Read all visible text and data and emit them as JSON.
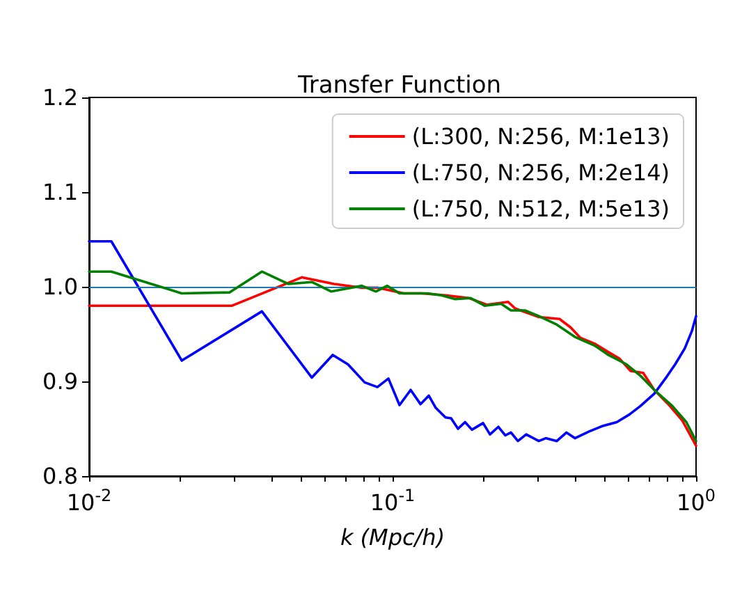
{
  "chart_data": {
    "type": "line",
    "title": "Transfer Function",
    "xlabel": "k (Mpc/h)",
    "log": "x",
    "xlim": [
      0.01,
      1
    ],
    "xticks": [
      {
        "value": 0.01,
        "label": "10$^{-2}$"
      },
      {
        "value": 0.02,
        "label": null
      },
      {
        "value": 0.03,
        "label": null
      },
      {
        "value": 0.04,
        "label": null
      },
      {
        "value": 0.05,
        "label": null
      },
      {
        "value": 0.06,
        "label": null
      },
      {
        "value": 0.07,
        "label": null
      },
      {
        "value": 0.08,
        "label": null
      },
      {
        "value": 0.09,
        "label": null
      },
      {
        "value": 0.1,
        "label": "10$^{-1}$"
      },
      {
        "value": 0.2,
        "label": null
      },
      {
        "value": 0.3,
        "label": null
      },
      {
        "value": 0.4,
        "label": null
      },
      {
        "value": 0.5,
        "label": null
      },
      {
        "value": 0.6,
        "label": null
      },
      {
        "value": 0.7,
        "label": null
      },
      {
        "value": 0.8,
        "label": null
      },
      {
        "value": 0.9,
        "label": null
      },
      {
        "value": 1,
        "label": "10$^{0}$"
      }
    ],
    "ylim": [
      0.8,
      1.2
    ],
    "yticks": [
      0.8,
      0.9,
      {
        "value": 1,
        "label": "1.0"
      },
      1.1,
      1.2
    ],
    "grid": false,
    "legend": "top right",
    "marker": "none",
    "line_style": "solid",
    "ref_lines": [
      {
        "axis": "y",
        "value": 1,
        "color": "#1f77b4"
      }
    ],
    "series": [
      {
        "name": "(L:300, N:256, M:1e13)",
        "color": "#ff0000",
        "x": [
          0.01,
          0.0296,
          0.0503,
          0.0642,
          0.0792,
          0.0891,
          0.1088,
          0.1247,
          0.1494,
          0.1786,
          0.205,
          0.2403,
          0.2535,
          0.3032,
          0.3548,
          0.3863,
          0.4159,
          0.4624,
          0.514,
          0.5598,
          0.6087,
          0.6696,
          0.7283,
          0.8098,
          0.8995,
          1
        ],
        "values": [
          0.98,
          0.98,
          1.01,
          1.003,
          0.999,
          0.999,
          0.993,
          0.993,
          0.991,
          0.988,
          0.981,
          0.984,
          0.977,
          0.968,
          0.966,
          0.957,
          0.946,
          0.94,
          0.931,
          0.924,
          0.911,
          0.909,
          0.891,
          0.876,
          0.859,
          0.832
        ]
      },
      {
        "name": "(L:750, N:256, M:2e14)",
        "color": "#0000ff",
        "x": [
          0.01,
          0.01184,
          0.0202,
          0.0371,
          0.0542,
          0.0635,
          0.0713,
          0.0809,
          0.0891,
          0.0969,
          0.1054,
          0.1147,
          0.1236,
          0.1316,
          0.1388,
          0.1494,
          0.1559,
          0.1643,
          0.1733,
          0.1826,
          0.1987,
          0.2094,
          0.2232,
          0.2353,
          0.2455,
          0.2588,
          0.2757,
          0.3032,
          0.3196,
          0.3477,
          0.3741,
          0.3989,
          0.4433,
          0.4929,
          0.548,
          0.6026,
          0.6556,
          0.7283,
          0.7924,
          0.8533,
          0.9183,
          0.9683,
          1
        ],
        "values": [
          1.048,
          1.048,
          0.922,
          0.974,
          0.904,
          0.928,
          0.918,
          0.899,
          0.894,
          0.903,
          0.875,
          0.891,
          0.876,
          0.885,
          0.872,
          0.862,
          0.861,
          0.85,
          0.857,
          0.849,
          0.856,
          0.844,
          0.852,
          0.843,
          0.846,
          0.837,
          0.844,
          0.837,
          0.84,
          0.837,
          0.846,
          0.84,
          0.847,
          0.853,
          0.857,
          0.865,
          0.874,
          0.887,
          0.903,
          0.918,
          0.935,
          0.953,
          0.969
        ]
      },
      {
        "name": "(L:750, N:512, M:5e13)",
        "color": "#008000",
        "x": [
          0.01,
          0.01184,
          0.0202,
          0.029,
          0.0371,
          0.0453,
          0.0542,
          0.0628,
          0.0792,
          0.0881,
          0.0959,
          0.1054,
          0.1303,
          0.1448,
          0.1608,
          0.1809,
          0.201,
          0.228,
          0.2455,
          0.2729,
          0.3032,
          0.3477,
          0.3989,
          0.4624,
          0.514,
          0.5902,
          0.6556,
          0.7283,
          0.8357,
          0.929,
          1
        ],
        "values": [
          1.016,
          1.016,
          0.993,
          0.994,
          1.016,
          1.003,
          1.005,
          0.995,
          1.001,
          0.995,
          1.001,
          0.993,
          0.993,
          0.991,
          0.987,
          0.988,
          0.98,
          0.982,
          0.975,
          0.975,
          0.969,
          0.96,
          0.947,
          0.938,
          0.928,
          0.918,
          0.906,
          0.891,
          0.874,
          0.857,
          0.837
        ]
      }
    ]
  }
}
